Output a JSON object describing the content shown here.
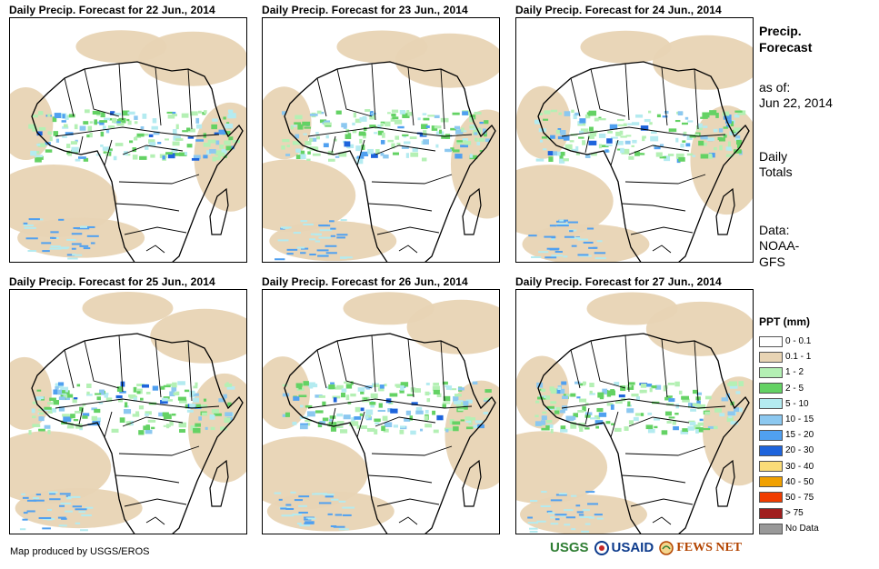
{
  "panels": [
    {
      "title": "Daily Precip. Forecast for 22 Jun., 2014"
    },
    {
      "title": "Daily Precip. Forecast for 23 Jun., 2014"
    },
    {
      "title": "Daily Precip. Forecast for 24 Jun., 2014"
    },
    {
      "title": "Daily Precip. Forecast for 25 Jun., 2014"
    },
    {
      "title": "Daily Precip. Forecast for 26 Jun., 2014"
    },
    {
      "title": "Daily Precip. Forecast for 27 Jun., 2014"
    }
  ],
  "side": {
    "heading_line1": "Precip.",
    "heading_line2": "Forecast",
    "asof_label": "as of:",
    "asof_date": "Jun 22, 2014",
    "totals_line1": "Daily",
    "totals_line2": "Totals",
    "data_line1": "Data:",
    "data_line2": "NOAA-",
    "data_line3": "GFS"
  },
  "legend": {
    "title": "PPT (mm)",
    "items": [
      {
        "label": "0 - 0.1",
        "color": "#ffffff"
      },
      {
        "label": "0.1 - 1",
        "color": "#e8d4b4"
      },
      {
        "label": "1 - 2",
        "color": "#b4f0b4"
      },
      {
        "label": "2 - 5",
        "color": "#64d264"
      },
      {
        "label": "5 - 10",
        "color": "#b4ebf0"
      },
      {
        "label": "10 - 15",
        "color": "#8cc8f0"
      },
      {
        "label": "15 - 20",
        "color": "#50a0f0"
      },
      {
        "label": "20 - 30",
        "color": "#1e64dc"
      },
      {
        "label": "30 - 40",
        "color": "#fadc78"
      },
      {
        "label": "40 - 50",
        "color": "#f0a000"
      },
      {
        "label": "50 - 75",
        "color": "#f03c00"
      },
      {
        "label": "> 75",
        "color": "#a01e1e"
      },
      {
        "label": "No Data",
        "color": "#999999"
      }
    ]
  },
  "credit": "Map produced by USGS/EROS",
  "logos": {
    "usgs": "USGS",
    "usaid": "USAID",
    "fews": "FEWS NET"
  }
}
